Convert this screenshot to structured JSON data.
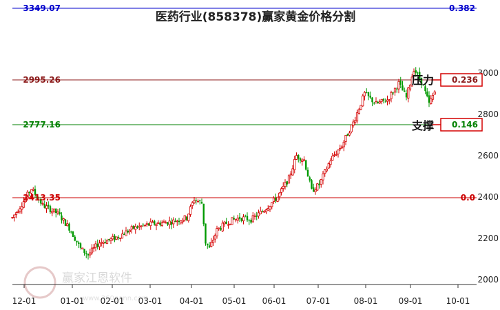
{
  "chart_data": {
    "type": "candlestick",
    "title": "医药行业(858378)赢家黄金价格分割",
    "x_ticks": [
      "12-01",
      "01-01",
      "02-01",
      "03-01",
      "04-01",
      "05-01",
      "06-01",
      "07-01",
      "08-01",
      "09-01",
      "10-01"
    ],
    "y_ticks": [
      2000,
      2200,
      2400,
      2600,
      2800,
      3000
    ],
    "ylim": [
      2000,
      3349.07
    ],
    "levels": [
      {
        "price": "3349.07",
        "ratio": "0.382",
        "color": "#0000cc",
        "boxed": false
      },
      {
        "price": "2995.26",
        "ratio": "0.236",
        "color": "#8b1a1a",
        "boxed": true
      },
      {
        "price": "2777.16",
        "ratio": "0.146",
        "color": "#008000",
        "boxed": true
      },
      {
        "price": "2413.35",
        "ratio": "0.0",
        "color": "#cc0000",
        "boxed": false
      }
    ],
    "annotations": {
      "resistance": "压力",
      "support": "支撑"
    },
    "up_color": "#d40000",
    "down_color": "#009900",
    "watermark": {
      "text": "赢家江恩软件",
      "url": "www.360gann.com"
    },
    "series_anchors": [
      {
        "t": 0,
        "close": 2300
      },
      {
        "t": 3,
        "close": 2380
      },
      {
        "t": 5,
        "close": 2440
      },
      {
        "t": 8,
        "close": 2360
      },
      {
        "t": 12,
        "close": 2320
      },
      {
        "t": 15,
        "close": 2250
      },
      {
        "t": 18,
        "close": 2150
      },
      {
        "t": 20,
        "close": 2120
      },
      {
        "t": 23,
        "close": 2180
      },
      {
        "t": 27,
        "close": 2200
      },
      {
        "t": 32,
        "close": 2250
      },
      {
        "t": 37,
        "close": 2270
      },
      {
        "t": 42,
        "close": 2280
      },
      {
        "t": 46,
        "close": 2300
      },
      {
        "t": 48,
        "close": 2390
      },
      {
        "t": 50,
        "close": 2370
      },
      {
        "t": 51,
        "close": 2180
      },
      {
        "t": 52,
        "close": 2150
      },
      {
        "t": 54,
        "close": 2240
      },
      {
        "t": 57,
        "close": 2280
      },
      {
        "t": 60,
        "close": 2300
      },
      {
        "t": 63,
        "close": 2290
      },
      {
        "t": 66,
        "close": 2330
      },
      {
        "t": 70,
        "close": 2400
      },
      {
        "t": 73,
        "close": 2490
      },
      {
        "t": 75,
        "close": 2600
      },
      {
        "t": 77,
        "close": 2580
      },
      {
        "t": 79,
        "close": 2430
      },
      {
        "t": 81,
        "close": 2460
      },
      {
        "t": 84,
        "close": 2580
      },
      {
        "t": 87,
        "close": 2650
      },
      {
        "t": 90,
        "close": 2760
      },
      {
        "t": 93,
        "close": 2900
      },
      {
        "t": 96,
        "close": 2850
      },
      {
        "t": 99,
        "close": 2870
      },
      {
        "t": 102,
        "close": 2950
      },
      {
        "t": 104,
        "close": 2880
      },
      {
        "t": 106,
        "close": 3020
      },
      {
        "t": 108,
        "close": 2960
      },
      {
        "t": 110,
        "close": 2850
      },
      {
        "t": 112,
        "close": 2930
      }
    ]
  }
}
